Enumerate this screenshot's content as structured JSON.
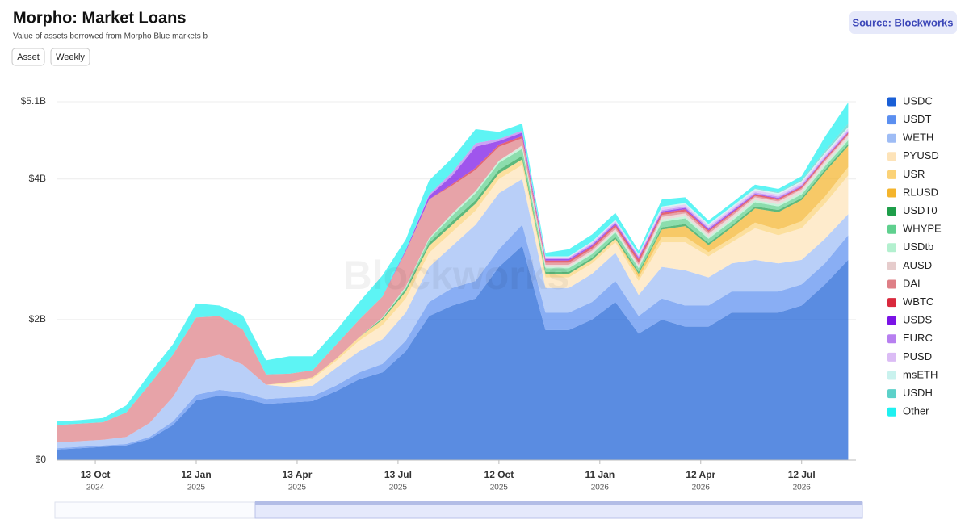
{
  "chart_data": {
    "type": "stacked-area",
    "title": "Morpho: Market Loans",
    "subtitle": "Value of assets borrowed from Morpho Blue markets b",
    "controls": [
      "Asset",
      "Weekly"
    ],
    "source": "Source: Blockworks",
    "watermark": "Blockworks",
    "x": [
      "2024-09-08",
      "2024-09-29",
      "2024-10-20",
      "2024-11-10",
      "2024-12-01",
      "2024-12-22",
      "2025-01-12",
      "2025-02-02",
      "2025-02-23",
      "2025-03-16",
      "2025-04-06",
      "2025-04-27",
      "2025-05-18",
      "2025-06-08",
      "2025-06-29",
      "2025-07-20",
      "2025-08-10",
      "2025-08-31",
      "2025-09-21",
      "2025-10-12",
      "2025-11-02",
      "2025-11-23",
      "2025-12-14",
      "2026-01-04",
      "2026-01-25",
      "2026-02-15",
      "2026-03-08",
      "2026-03-29",
      "2026-04-19",
      "2026-05-10",
      "2026-05-31",
      "2026-06-21",
      "2026-07-12",
      "2026-08-02",
      "2026-08-23"
    ],
    "xlim": [
      "2024-09-08",
      "2026-08-30"
    ],
    "xticks": [
      {
        "value": "2024-10-13",
        "label": "13 Oct",
        "sublabel": "2024"
      },
      {
        "value": "2025-01-12",
        "label": "12 Jan",
        "sublabel": "2025"
      },
      {
        "value": "2025-04-13",
        "label": "13 Apr",
        "sublabel": "2025"
      },
      {
        "value": "2025-07-13",
        "label": "13 Jul",
        "sublabel": "2025"
      },
      {
        "value": "2025-10-12",
        "label": "12 Oct",
        "sublabel": "2025"
      },
      {
        "value": "2026-01-11",
        "label": "11 Jan",
        "sublabel": "2026"
      },
      {
        "value": "2026-04-12",
        "label": "12 Apr",
        "sublabel": "2026"
      },
      {
        "value": "2026-07-12",
        "label": "12 Jul",
        "sublabel": "2026"
      }
    ],
    "ylim": [
      0,
      5.1
    ],
    "yticks": [
      {
        "value": 0,
        "label": "$0"
      },
      {
        "value": 2,
        "label": "$2B"
      },
      {
        "value": 4,
        "label": "$4B"
      },
      {
        "value": 5.1,
        "label": "$5.1B"
      }
    ],
    "grid": true,
    "legend": "right",
    "series": [
      {
        "name": "USDC",
        "color": "#1a5fd6",
        "values": [
          0.15,
          0.17,
          0.19,
          0.21,
          0.3,
          0.5,
          0.85,
          0.92,
          0.88,
          0.8,
          0.82,
          0.84,
          0.98,
          1.15,
          1.25,
          1.55,
          2.05,
          2.2,
          2.3,
          2.75,
          3.05,
          1.85,
          1.85,
          2.0,
          2.25,
          1.8,
          2.0,
          1.9,
          1.9,
          2.1,
          2.1,
          2.1,
          2.2,
          2.5,
          2.85
        ]
      },
      {
        "name": "USDT",
        "color": "#5b8ff0",
        "values": [
          0.02,
          0.02,
          0.02,
          0.02,
          0.03,
          0.05,
          0.08,
          0.08,
          0.08,
          0.07,
          0.07,
          0.07,
          0.08,
          0.1,
          0.12,
          0.15,
          0.2,
          0.25,
          0.25,
          0.25,
          0.3,
          0.25,
          0.25,
          0.25,
          0.3,
          0.25,
          0.3,
          0.3,
          0.3,
          0.3,
          0.3,
          0.3,
          0.3,
          0.3,
          0.35
        ]
      },
      {
        "name": "WETH",
        "color": "#9ebcf5",
        "values": [
          0.08,
          0.08,
          0.08,
          0.1,
          0.2,
          0.35,
          0.5,
          0.5,
          0.4,
          0.2,
          0.15,
          0.15,
          0.25,
          0.3,
          0.35,
          0.4,
          0.5,
          0.6,
          0.8,
          0.8,
          0.65,
          0.35,
          0.35,
          0.4,
          0.4,
          0.3,
          0.45,
          0.5,
          0.4,
          0.4,
          0.45,
          0.4,
          0.35,
          0.35,
          0.3
        ]
      },
      {
        "name": "PYUSD",
        "color": "#fde3b8",
        "values": [
          0,
          0,
          0,
          0,
          0,
          0,
          0,
          0,
          0,
          0,
          0.05,
          0.1,
          0.1,
          0.15,
          0.2,
          0.2,
          0.2,
          0.2,
          0.2,
          0.2,
          0.2,
          0.15,
          0.15,
          0.15,
          0.15,
          0.2,
          0.35,
          0.4,
          0.3,
          0.3,
          0.45,
          0.4,
          0.45,
          0.5,
          0.55
        ]
      },
      {
        "name": "USR",
        "color": "#fbd277",
        "values": [
          0,
          0,
          0,
          0,
          0,
          0,
          0,
          0,
          0,
          0,
          0.02,
          0.02,
          0.03,
          0.05,
          0.08,
          0.1,
          0.1,
          0.1,
          0.1,
          0.08,
          0.08,
          0.05,
          0.05,
          0.05,
          0.05,
          0.05,
          0.08,
          0.08,
          0.06,
          0.06,
          0.08,
          0.08,
          0.1,
          0.1,
          0.12
        ]
      },
      {
        "name": "RLUSD",
        "color": "#f4b42c",
        "values": [
          0,
          0,
          0,
          0,
          0,
          0,
          0,
          0,
          0,
          0,
          0,
          0,
          0,
          0,
          0,
          0,
          0,
          0,
          0,
          0,
          0,
          0,
          0,
          0,
          0,
          0.05,
          0.1,
          0.15,
          0.1,
          0.15,
          0.2,
          0.25,
          0.3,
          0.35,
          0.3
        ]
      },
      {
        "name": "USDT0",
        "color": "#1e9e4a",
        "values": [
          0,
          0,
          0,
          0,
          0,
          0,
          0,
          0,
          0,
          0,
          0,
          0,
          0,
          0,
          0.02,
          0.03,
          0.04,
          0.05,
          0.05,
          0.05,
          0.05,
          0.03,
          0.03,
          0.03,
          0.03,
          0.03,
          0.03,
          0.03,
          0.03,
          0.03,
          0.03,
          0.03,
          0.03,
          0.03,
          0.03
        ]
      },
      {
        "name": "WHYPE",
        "color": "#5fd08e",
        "values": [
          0,
          0,
          0,
          0,
          0,
          0,
          0,
          0,
          0,
          0,
          0,
          0,
          0,
          0,
          0,
          0.02,
          0.05,
          0.08,
          0.1,
          0.1,
          0.1,
          0.05,
          0.05,
          0.05,
          0.06,
          0.05,
          0.08,
          0.08,
          0.06,
          0.06,
          0.06,
          0.05,
          0.05,
          0.05,
          0.05
        ]
      },
      {
        "name": "USDtb",
        "color": "#b3f0cf",
        "values": [
          0,
          0,
          0,
          0,
          0,
          0,
          0,
          0,
          0,
          0,
          0,
          0,
          0,
          0,
          0.01,
          0.02,
          0.02,
          0.03,
          0.03,
          0.03,
          0.03,
          0.02,
          0.02,
          0.02,
          0.02,
          0.02,
          0.03,
          0.03,
          0.03,
          0.03,
          0.03,
          0.03,
          0.03,
          0.03,
          0.03
        ]
      },
      {
        "name": "AUSD",
        "color": "#e6cccc",
        "values": [
          0,
          0,
          0,
          0,
          0,
          0,
          0,
          0,
          0,
          0,
          0,
          0,
          0,
          0,
          0,
          0,
          0,
          0,
          0,
          0,
          0.02,
          0.03,
          0.03,
          0.03,
          0.03,
          0.03,
          0.04,
          0.04,
          0.04,
          0.04,
          0.04,
          0.04,
          0.04,
          0.04,
          0.04
        ]
      },
      {
        "name": "DAI",
        "color": "#de7f86",
        "values": [
          0.25,
          0.25,
          0.25,
          0.35,
          0.55,
          0.6,
          0.6,
          0.55,
          0.5,
          0.15,
          0.12,
          0.1,
          0.2,
          0.25,
          0.3,
          0.5,
          0.55,
          0.4,
          0.3,
          0.2,
          0.1,
          0.03,
          0.03,
          0.03,
          0.03,
          0.03,
          0.03,
          0.03,
          0.03,
          0.03,
          0.02,
          0.02,
          0.02,
          0.02,
          0.02
        ]
      },
      {
        "name": "WBTC",
        "color": "#d9293d",
        "values": [
          0,
          0,
          0,
          0,
          0,
          0,
          0,
          0,
          0,
          0,
          0,
          0,
          0,
          0,
          0,
          0,
          0,
          0.02,
          0.03,
          0.03,
          0.03,
          0.03,
          0.03,
          0.03,
          0.03,
          0.05,
          0.03,
          0.03,
          0.02,
          0.02,
          0.02,
          0.02,
          0.02,
          0.02,
          0.02
        ]
      },
      {
        "name": "USDS",
        "color": "#7a13e6",
        "values": [
          0,
          0,
          0,
          0,
          0,
          0,
          0,
          0,
          0,
          0,
          0,
          0,
          0,
          0,
          0,
          0.02,
          0.05,
          0.12,
          0.3,
          0.05,
          0.05,
          0.02,
          0.02,
          0.02,
          0.02,
          0.02,
          0.02,
          0.02,
          0.02,
          0.02,
          0.01,
          0.01,
          0.01,
          0.01,
          0.01
        ]
      },
      {
        "name": "EURC",
        "color": "#b77ff0",
        "values": [
          0,
          0,
          0,
          0,
          0,
          0,
          0,
          0,
          0,
          0,
          0,
          0,
          0,
          0,
          0,
          0,
          0.02,
          0.05,
          0.05,
          0.03,
          0.03,
          0.02,
          0.02,
          0.02,
          0.02,
          0.02,
          0.02,
          0.02,
          0.02,
          0.02,
          0.02,
          0.02,
          0.02,
          0.02,
          0.02
        ]
      },
      {
        "name": "PUSD",
        "color": "#dbbcf5",
        "values": [
          0,
          0,
          0,
          0,
          0,
          0,
          0,
          0,
          0,
          0,
          0,
          0,
          0,
          0,
          0,
          0,
          0,
          0,
          0,
          0,
          0,
          0.01,
          0.01,
          0.02,
          0.02,
          0.02,
          0.03,
          0.03,
          0.03,
          0.03,
          0.03,
          0.03,
          0.03,
          0.03,
          0.03
        ]
      },
      {
        "name": "msETH",
        "color": "#c9f2ee",
        "values": [
          0,
          0,
          0,
          0,
          0,
          0,
          0,
          0,
          0,
          0,
          0,
          0,
          0,
          0,
          0,
          0,
          0,
          0,
          0,
          0,
          0,
          0.01,
          0.01,
          0.01,
          0.01,
          0.01,
          0.02,
          0.02,
          0.02,
          0.02,
          0.02,
          0.02,
          0.02,
          0.02,
          0.02
        ]
      },
      {
        "name": "USDH",
        "color": "#5cd1c9",
        "values": [
          0,
          0,
          0,
          0,
          0,
          0,
          0,
          0,
          0,
          0,
          0,
          0,
          0,
          0,
          0,
          0,
          0,
          0,
          0,
          0,
          0,
          0,
          0,
          0,
          0,
          0,
          0,
          0,
          0,
          0,
          0.01,
          0.01,
          0.02,
          0.03,
          0.05
        ]
      },
      {
        "name": "Other",
        "color": "#1ff0f0",
        "values": [
          0.05,
          0.05,
          0.06,
          0.1,
          0.15,
          0.15,
          0.2,
          0.15,
          0.2,
          0.2,
          0.25,
          0.2,
          0.2,
          0.25,
          0.3,
          0.15,
          0.2,
          0.2,
          0.2,
          0.1,
          0.1,
          0.05,
          0.1,
          0.1,
          0.1,
          0.05,
          0.1,
          0.08,
          0.05,
          0.05,
          0.05,
          0.05,
          0.05,
          0.2,
          0.3
        ]
      }
    ]
  }
}
